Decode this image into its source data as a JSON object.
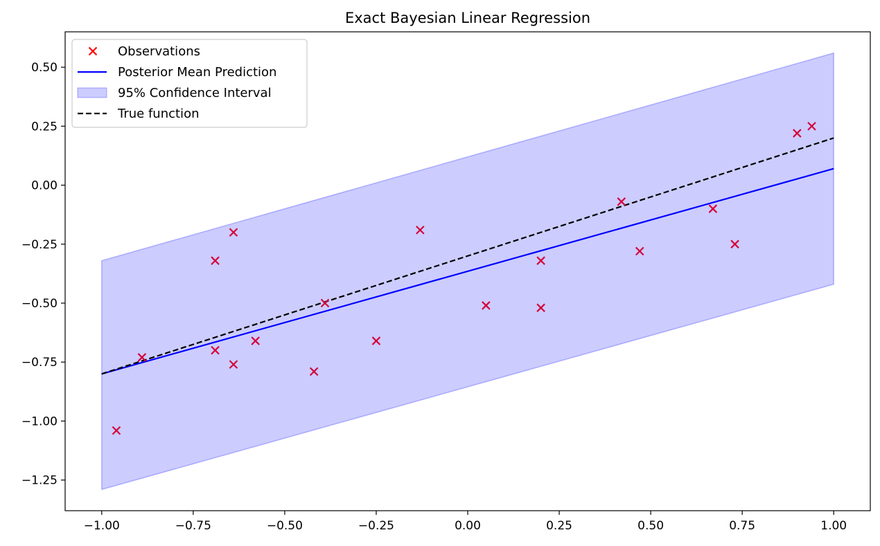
{
  "chart_data": {
    "type": "scatter",
    "title": "Exact Bayesian Linear Regression",
    "xlabel": "",
    "ylabel": "",
    "xlim": [
      -1.1,
      1.1
    ],
    "ylim": [
      -1.38,
      0.65
    ],
    "xticks": [
      -1.0,
      -0.75,
      -0.5,
      -0.25,
      0.0,
      0.25,
      0.5,
      0.75,
      1.0
    ],
    "xtick_labels": [
      "−1.00",
      "−0.75",
      "−0.50",
      "−0.25",
      "0.00",
      "0.25",
      "0.50",
      "0.75",
      "1.00"
    ],
    "yticks": [
      -1.25,
      -1.0,
      -0.75,
      -0.5,
      -0.25,
      0.0,
      0.25,
      0.5
    ],
    "ytick_labels": [
      "−1.25",
      "−1.00",
      "−0.75",
      "−0.50",
      "−0.25",
      "0.00",
      "0.25",
      "0.50"
    ],
    "grid": false,
    "legend_position": "upper-left",
    "series": [
      {
        "name": "Observations",
        "kind": "scatter",
        "marker": "x",
        "color": "#d4003a",
        "legend_color": "#ff0000",
        "points": [
          [
            -0.96,
            -1.04
          ],
          [
            -0.89,
            -0.73
          ],
          [
            -0.69,
            -0.32
          ],
          [
            -0.69,
            -0.7
          ],
          [
            -0.64,
            -0.2
          ],
          [
            -0.64,
            -0.76
          ],
          [
            -0.58,
            -0.66
          ],
          [
            -0.42,
            -0.79
          ],
          [
            -0.39,
            -0.5
          ],
          [
            -0.25,
            -0.66
          ],
          [
            -0.13,
            -0.19
          ],
          [
            0.05,
            -0.51
          ],
          [
            0.2,
            -0.52
          ],
          [
            0.2,
            -0.32
          ],
          [
            0.42,
            -0.07
          ],
          [
            0.47,
            -0.28
          ],
          [
            0.67,
            -0.1
          ],
          [
            0.73,
            -0.25
          ],
          [
            0.9,
            0.22
          ],
          [
            0.94,
            0.25
          ]
        ]
      },
      {
        "name": "Posterior Mean Prediction",
        "kind": "line",
        "color": "#0000ff",
        "x": [
          -1.0,
          1.0
        ],
        "y": [
          -0.8,
          0.07
        ]
      },
      {
        "name": "95% Confidence Interval",
        "kind": "band",
        "color": "#0000ff",
        "x": [
          -1.0,
          1.0
        ],
        "lower": [
          -1.29,
          -0.42
        ],
        "upper": [
          -0.32,
          0.56
        ]
      },
      {
        "name": "True function",
        "kind": "dashed-line",
        "color": "#000000",
        "x": [
          -1.0,
          1.0
        ],
        "y": [
          -0.8,
          0.2
        ]
      }
    ]
  }
}
